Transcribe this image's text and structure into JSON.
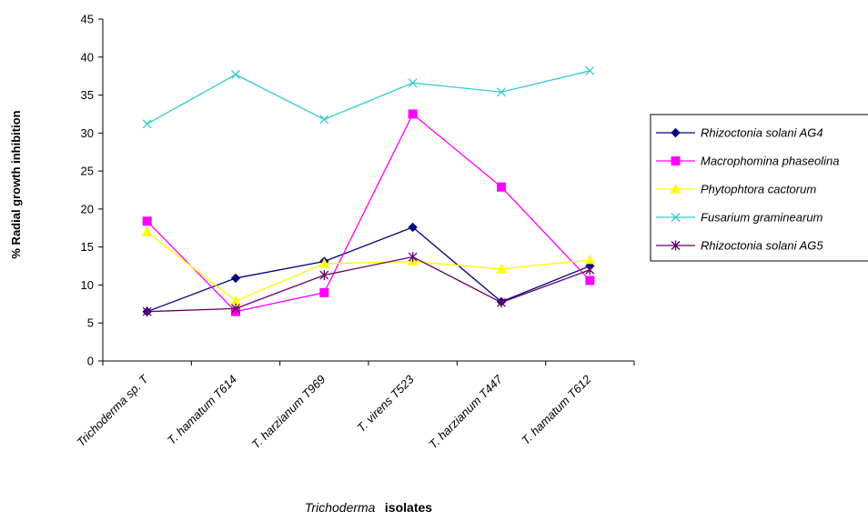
{
  "chart_data": {
    "type": "line",
    "ylabel": "% Radial growth inhibition",
    "xlabel_italic": "Trichoderma",
    "xlabel_bold": "isolates",
    "ylim": [
      0,
      45
    ],
    "yticks": [
      "0",
      "5",
      "10",
      "15",
      "20",
      "25",
      "30",
      "35",
      "40",
      "45"
    ],
    "grid": false,
    "legend_position": "right",
    "categories": [
      "Trichoderma sp. T",
      "T. hamatum T614",
      "T. harzianum T969",
      "T. virens T523",
      "T. harzianum T447",
      "T. hamatum T612"
    ],
    "series": [
      {
        "name": "Rhizoctonia solani AG4",
        "color": "#000080",
        "marker": "diamond",
        "values": [
          6.5,
          10.9,
          13.1,
          17.6,
          7.8,
          12.5
        ]
      },
      {
        "name": "Macrophomina phaseolina",
        "color": "#FF00FF",
        "marker": "square",
        "values": [
          18.4,
          6.5,
          9.0,
          32.5,
          22.9,
          10.6
        ]
      },
      {
        "name": "Phytophtora cactorum",
        "color": "#FFFF00",
        "marker": "triangle",
        "values": [
          17.0,
          7.9,
          12.8,
          13.1,
          12.1,
          13.3
        ]
      },
      {
        "name": "Fusarium graminearum",
        "color": "#33CCCC",
        "marker": "x",
        "values": [
          31.2,
          37.7,
          31.8,
          36.6,
          35.4,
          38.2
        ]
      },
      {
        "name": "Rhizoctonia solani AG5",
        "color": "#660066",
        "marker": "star",
        "values": [
          6.5,
          6.9,
          11.3,
          13.7,
          7.7,
          12.0
        ]
      }
    ]
  }
}
